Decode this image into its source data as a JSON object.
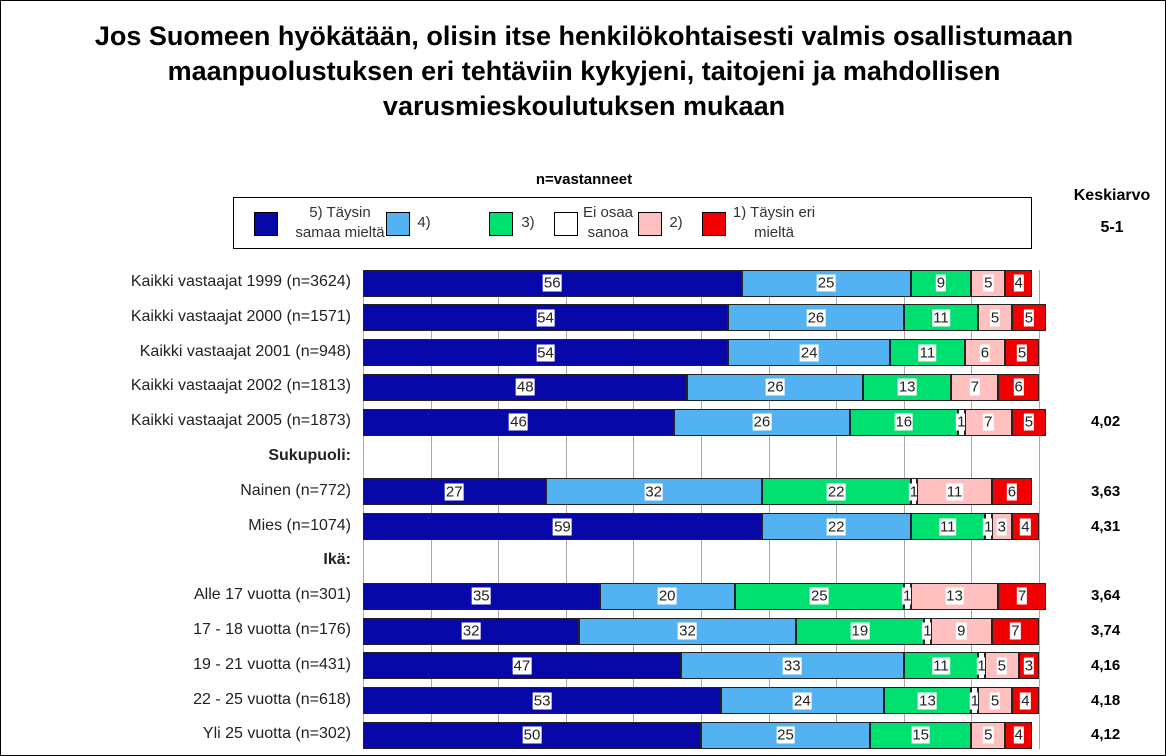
{
  "chart_data": {
    "type": "stacked-bar-horizontal",
    "title": "Jos Suomeen hyökätään, olisin itse henkilökohtaisesti valmis osallistumaan maanpuolustuksen eri tehtäviin kykyjeni, taitojeni ja mahdollisen varusmieskoulutuksen mukaan",
    "subtitle": "n=vastanneet",
    "categories": [
      "Kaikki vastaajat 1999 (n=3624)",
      "Kaikki vastaajat 2000 (n=1571)",
      "Kaikki vastaajat 2001 (n=948)",
      "Kaikki vastaajat 2002 (n=1813)",
      "Kaikki vastaajat 2005 (n=1873)",
      "Sukupuoli:",
      "Nainen (n=772)",
      "Mies (n=1074)",
      "Ikä:",
      "Alle 17 vuotta (n=301)",
      "17 - 18 vuotta (n=176)",
      "19 - 21 vuotta (n=431)",
      "22 - 25 vuotta (n=618)",
      "Yli 25 vuotta (n=302)"
    ],
    "series": [
      {
        "name": "5) Täysin samaa mieltä",
        "color": "#0808a8",
        "values": [
          56,
          54,
          54,
          48,
          46,
          null,
          27,
          59,
          null,
          35,
          32,
          47,
          53,
          50
        ]
      },
      {
        "name": "4)",
        "color": "#52b2f2",
        "values": [
          25,
          26,
          24,
          26,
          26,
          null,
          32,
          22,
          null,
          20,
          32,
          33,
          24,
          25
        ]
      },
      {
        "name": "3)",
        "color": "#00e070",
        "values": [
          9,
          11,
          11,
          13,
          16,
          null,
          22,
          11,
          null,
          25,
          19,
          11,
          13,
          15
        ]
      },
      {
        "name": "Ei osaa sanoa",
        "color": "#ffffff",
        "values": [
          null,
          null,
          null,
          null,
          1,
          null,
          1,
          1,
          null,
          1,
          1,
          1,
          1,
          null
        ]
      },
      {
        "name": "2)",
        "color": "#ffc0c0",
        "values": [
          5,
          5,
          6,
          7,
          7,
          null,
          11,
          3,
          null,
          13,
          9,
          5,
          5,
          5
        ]
      },
      {
        "name": "1) Täysin eri mieltä",
        "color": "#f00000",
        "values": [
          4,
          5,
          5,
          6,
          5,
          null,
          6,
          4,
          null,
          7,
          7,
          3,
          4,
          4
        ]
      }
    ],
    "xlim": [
      0,
      100
    ],
    "xticks": [
      0,
      10,
      20,
      30,
      40,
      50,
      60,
      70,
      80,
      90,
      100
    ],
    "grid": true,
    "mean": {
      "title": "Keskiarvo",
      "subtitle": "5-1",
      "values": [
        null,
        null,
        null,
        null,
        4.02,
        null,
        3.63,
        4.31,
        null,
        3.64,
        3.74,
        4.16,
        4.18,
        4.12
      ],
      "value_labels": [
        null,
        null,
        null,
        null,
        "4,02",
        null,
        "3,63",
        "4,31",
        null,
        "3,64",
        "3,74",
        "4,16",
        "4,18",
        "4,12"
      ]
    }
  }
}
